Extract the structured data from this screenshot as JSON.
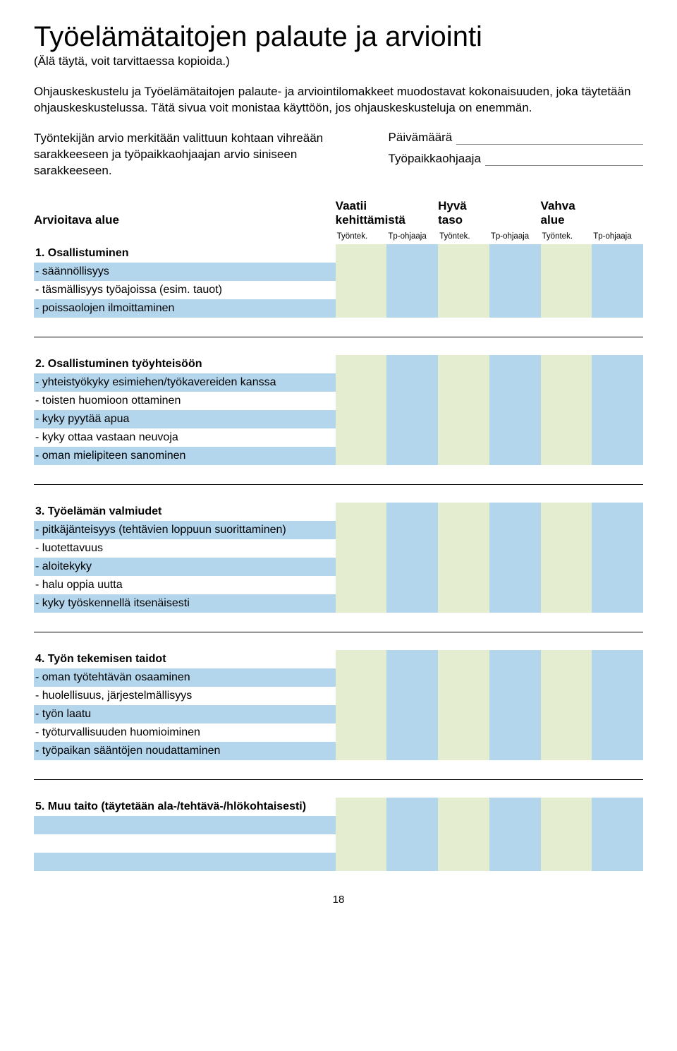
{
  "title": "Työelämätaitojen palaute ja arviointi",
  "subtitle": "(Älä täytä, voit tarvittaessa kopioida.)",
  "intro": "Ohjauskeskustelu ja Työelämätaitojen palaute- ja arviointilomakkeet muodostavat kokonaisuuden,  joka täytetään ohjauskeskustelussa. Tätä sivua voit monistaa käyttöön, jos ohjauskeskusteluja on enemmän.",
  "left_note": "Työntekijän arvio merkitään valittuun kohtaan vihreään sarakkeeseen ja työpaikkaohjaajan arvio siniseen sarakkeeseen.",
  "field1_label": "Päivämäärä",
  "field2_label": "Työpaikkaohjaaja",
  "area_label": "Arvioitava alue",
  "rating_labels": [
    "Vaatii",
    "kehittämistä",
    "Hyvä",
    "taso",
    "Vahva",
    "alue"
  ],
  "subheadings": [
    "Työntek.",
    "Tp-ohjaaja",
    "Työntek.",
    "Tp-ohjaaja",
    "Työntek.",
    "Tp-ohjaaja"
  ],
  "colors": {
    "green": "#e4edcf",
    "blue": "#b3d6ed",
    "label_bg_header": "#ffffff",
    "label_bg_blue": "#b3d6ed"
  },
  "sections": [
    {
      "title": "1. Osallistuminen",
      "rows": [
        "- säännöllisyys",
        "- täsmällisyys työajoissa (esim. tauot)",
        "- poissaolojen ilmoittaminen"
      ]
    },
    {
      "title": "2. Osallistuminen työyhteisöön",
      "rows": [
        "- yhteistyökyky esimiehen/työkavereiden kanssa",
        "- toisten huomioon ottaminen",
        "- kyky pyytää apua",
        "- kyky ottaa vastaan neuvoja",
        "- oman mielipiteen sanominen"
      ]
    },
    {
      "title": "3. Työelämän valmiudet",
      "rows": [
        "- pitkäjänteisyys (tehtävien loppuun suorittaminen)",
        "- luotettavuus",
        "- aloitekyky",
        "- halu oppia uutta",
        "- kyky työskennellä itsenäisesti"
      ]
    },
    {
      "title": "4. Työn tekemisen taidot",
      "rows": [
        "- oman työtehtävän osaaminen",
        "- huolellisuus, järjestelmällisyys",
        "- työn laatu",
        "- työturvallisuuden huomioiminen",
        "- työpaikan sääntöjen noudattaminen"
      ]
    },
    {
      "title": "5. Muu taito (täytetään ala-/tehtävä-/hlökohtaisesti)",
      "title_weight": "normal",
      "title_bold_prefix": "5. Muu taito",
      "blank_rows": 3
    }
  ],
  "page_number": "18"
}
